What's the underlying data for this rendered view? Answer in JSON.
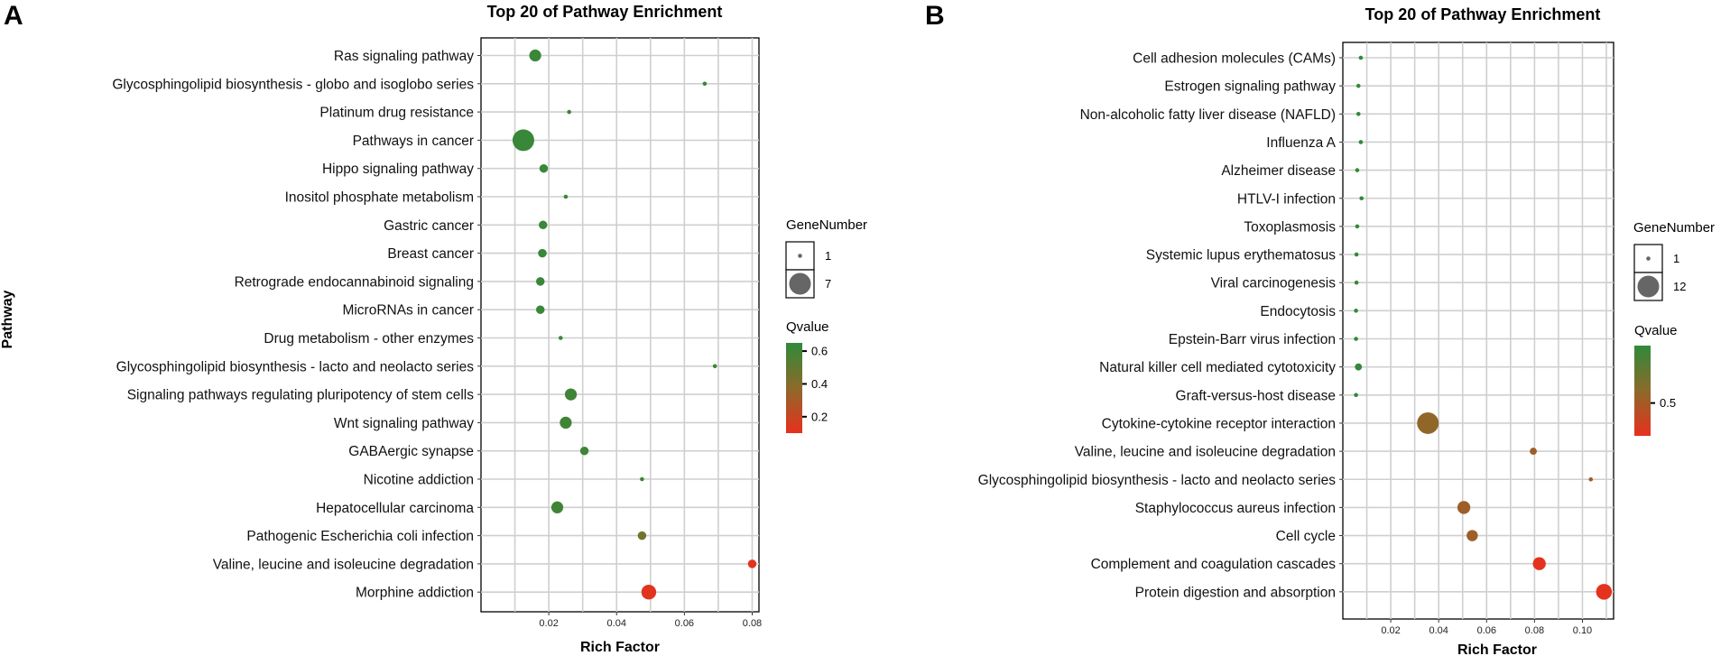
{
  "chart_data": [
    {
      "panel": "A",
      "type": "scatter",
      "title": "Top 20 of Pathway Enrichment",
      "xlabel": "Rich Factor",
      "ylabel": "Pathway",
      "xlim": [
        0.0,
        0.082
      ],
      "xticks": [
        0.02,
        0.04,
        0.06,
        0.08
      ],
      "xtick_labels": [
        "0.02",
        "0.04",
        "0.06",
        "0.08"
      ],
      "size_legend": {
        "title": "GeneNumber",
        "values": [
          1,
          7
        ],
        "labels": [
          "1",
          "7"
        ]
      },
      "color_legend": {
        "title": "Qvalue",
        "range": [
          0.1,
          0.65
        ],
        "ticks": [
          0.2,
          0.4,
          0.6
        ],
        "tick_labels": [
          "0.2",
          "0.4",
          "0.6"
        ],
        "low_color": "#e8301e",
        "high_color": "#2f8a3a"
      },
      "points": [
        {
          "pathway": "Ras signaling pathway",
          "rich_factor": 0.016,
          "gene_number": 3,
          "qvalue": 0.62
        },
        {
          "pathway": "Glycosphingolipid biosynthesis - globo and isoglobo series",
          "rich_factor": 0.066,
          "gene_number": 1,
          "qvalue": 0.62
        },
        {
          "pathway": "Platinum drug resistance",
          "rich_factor": 0.026,
          "gene_number": 1,
          "qvalue": 0.62
        },
        {
          "pathway": "Pathways in cancer",
          "rich_factor": 0.0125,
          "gene_number": 7,
          "qvalue": 0.62
        },
        {
          "pathway": "Hippo signaling pathway",
          "rich_factor": 0.0185,
          "gene_number": 2,
          "qvalue": 0.62
        },
        {
          "pathway": "Inositol phosphate metabolism",
          "rich_factor": 0.025,
          "gene_number": 1,
          "qvalue": 0.62
        },
        {
          "pathway": "Gastric cancer",
          "rich_factor": 0.0183,
          "gene_number": 2,
          "qvalue": 0.62
        },
        {
          "pathway": "Breast cancer",
          "rich_factor": 0.0181,
          "gene_number": 2,
          "qvalue": 0.62
        },
        {
          "pathway": "Retrograde endocannabinoid signaling",
          "rich_factor": 0.0175,
          "gene_number": 2,
          "qvalue": 0.62
        },
        {
          "pathway": "MicroRNAs in cancer",
          "rich_factor": 0.0175,
          "gene_number": 2,
          "qvalue": 0.62
        },
        {
          "pathway": "Drug metabolism - other enzymes",
          "rich_factor": 0.0235,
          "gene_number": 1,
          "qvalue": 0.62
        },
        {
          "pathway": "Glycosphingolipid biosynthesis - lacto and neolacto series",
          "rich_factor": 0.069,
          "gene_number": 1,
          "qvalue": 0.6
        },
        {
          "pathway": "Signaling pathways regulating pluripotency of stem cells",
          "rich_factor": 0.0265,
          "gene_number": 3,
          "qvalue": 0.6
        },
        {
          "pathway": "Wnt signaling pathway",
          "rich_factor": 0.025,
          "gene_number": 3,
          "qvalue": 0.6
        },
        {
          "pathway": "GABAergic synapse",
          "rich_factor": 0.0305,
          "gene_number": 2,
          "qvalue": 0.6
        },
        {
          "pathway": "Nicotine addiction",
          "rich_factor": 0.0475,
          "gene_number": 1,
          "qvalue": 0.6
        },
        {
          "pathway": "Hepatocellular carcinoma",
          "rich_factor": 0.0225,
          "gene_number": 3,
          "qvalue": 0.6
        },
        {
          "pathway": "Pathogenic Escherichia coli infection",
          "rich_factor": 0.0475,
          "gene_number": 2,
          "qvalue": 0.45
        },
        {
          "pathway": "Valine, leucine and isoleucine degradation",
          "rich_factor": 0.08,
          "gene_number": 2,
          "qvalue": 0.12
        },
        {
          "pathway": "Morphine addiction",
          "rich_factor": 0.0495,
          "gene_number": 4,
          "qvalue": 0.12
        }
      ]
    },
    {
      "panel": "B",
      "type": "scatter",
      "title": "Top 20 of Pathway Enrichment",
      "xlabel": "Rich Factor",
      "ylabel": "",
      "xlim": [
        0.0,
        0.113
      ],
      "xticks": [
        0.02,
        0.04,
        0.06,
        0.08,
        0.1
      ],
      "xtick_labels": [
        "0.02",
        "0.04",
        "0.06",
        "0.08",
        "0.10"
      ],
      "size_legend": {
        "title": "GeneNumber",
        "values": [
          1,
          12
        ],
        "labels": [
          "1",
          "12"
        ]
      },
      "color_legend": {
        "title": "Qvalue",
        "range": [
          0.3,
          0.85
        ],
        "ticks": [
          0.5
        ],
        "tick_labels": [
          "0.5"
        ],
        "low_color": "#e8301e",
        "high_color": "#2f8a3a"
      },
      "points": [
        {
          "pathway": "Cell adhesion molecules (CAMs)",
          "rich_factor": 0.0075,
          "gene_number": 1,
          "qvalue": 0.84
        },
        {
          "pathway": "Estrogen signaling pathway",
          "rich_factor": 0.0065,
          "gene_number": 1,
          "qvalue": 0.84
        },
        {
          "pathway": "Non-alcoholic fatty liver disease (NAFLD)",
          "rich_factor": 0.0065,
          "gene_number": 1,
          "qvalue": 0.84
        },
        {
          "pathway": "Influenza A",
          "rich_factor": 0.0075,
          "gene_number": 1,
          "qvalue": 0.84
        },
        {
          "pathway": "Alzheimer disease",
          "rich_factor": 0.006,
          "gene_number": 1,
          "qvalue": 0.84
        },
        {
          "pathway": "HTLV-I infection",
          "rich_factor": 0.0078,
          "gene_number": 1,
          "qvalue": 0.84
        },
        {
          "pathway": "Toxoplasmosis",
          "rich_factor": 0.006,
          "gene_number": 1,
          "qvalue": 0.84
        },
        {
          "pathway": "Systemic lupus erythematosus",
          "rich_factor": 0.0057,
          "gene_number": 1,
          "qvalue": 0.84
        },
        {
          "pathway": "Viral carcinogenesis",
          "rich_factor": 0.0057,
          "gene_number": 1,
          "qvalue": 0.84
        },
        {
          "pathway": "Endocytosis",
          "rich_factor": 0.0055,
          "gene_number": 1,
          "qvalue": 0.84
        },
        {
          "pathway": "Epstein-Barr virus infection",
          "rich_factor": 0.0055,
          "gene_number": 1,
          "qvalue": 0.84
        },
        {
          "pathway": "Natural killer cell mediated cytotoxicity",
          "rich_factor": 0.0065,
          "gene_number": 2,
          "qvalue": 0.84
        },
        {
          "pathway": "Graft-versus-host disease",
          "rich_factor": 0.0055,
          "gene_number": 1,
          "qvalue": 0.84
        },
        {
          "pathway": "Cytokine-cytokine receptor interaction",
          "rich_factor": 0.0355,
          "gene_number": 12,
          "qvalue": 0.56
        },
        {
          "pathway": "Valine, leucine and isoleucine degradation",
          "rich_factor": 0.0795,
          "gene_number": 2,
          "qvalue": 0.52
        },
        {
          "pathway": "Glycosphingolipid biosynthesis - lacto and neolacto series",
          "rich_factor": 0.1035,
          "gene_number": 1,
          "qvalue": 0.52
        },
        {
          "pathway": "Staphylococcus aureus infection",
          "rich_factor": 0.0505,
          "gene_number": 5,
          "qvalue": 0.52
        },
        {
          "pathway": "Cell cycle",
          "rich_factor": 0.054,
          "gene_number": 4,
          "qvalue": 0.52
        },
        {
          "pathway": "Complement and coagulation cascades",
          "rich_factor": 0.082,
          "gene_number": 5,
          "qvalue": 0.31
        },
        {
          "pathway": "Protein digestion and absorption",
          "rich_factor": 0.109,
          "gene_number": 7,
          "qvalue": 0.31
        }
      ]
    }
  ]
}
